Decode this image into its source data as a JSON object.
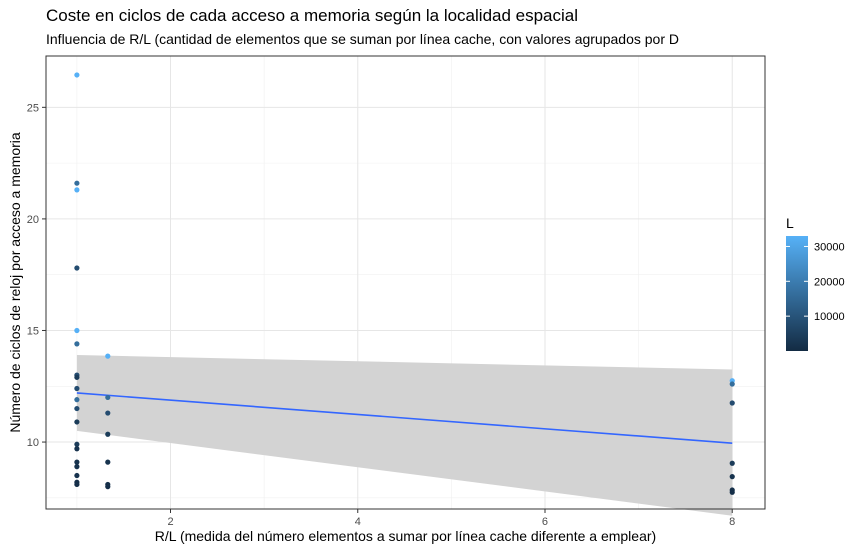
{
  "chart_data": {
    "type": "scatter",
    "title": "Coste en ciclos de cada acceso a memoria según la localidad espacial",
    "subtitle": "Influencia de R/L (cantidad de elementos que se suman por línea cache, con valores agrupados por D",
    "xlabel": "R/L (medida del número elementos a sumar por línea cache diferente a emplear)",
    "ylabel": "Número de ciclos de reloj por acceso a memoria",
    "xlim": [
      0.67,
      8.35
    ],
    "ylim": [
      7.0,
      27.3
    ],
    "x_ticks": [
      2,
      4,
      6,
      8
    ],
    "y_ticks": [
      10,
      15,
      20,
      25
    ],
    "x_tick_labels": [
      "2",
      "4",
      "6",
      "8"
    ],
    "y_tick_labels": [
      "10",
      "15",
      "20",
      "25"
    ],
    "grid": true,
    "legend": {
      "title": "L",
      "placement": "right",
      "min": 0,
      "max": 33000,
      "breaks": [
        10000,
        20000,
        30000
      ],
      "break_labels": [
        "10000",
        "20000",
        "30000"
      ],
      "color_low": "#132B43",
      "color_high": "#56B1F7"
    },
    "points": [
      {
        "x": 1,
        "y": 26.45,
        "L": 32768
      },
      {
        "x": 1,
        "y": 21.6,
        "L": 16384
      },
      {
        "x": 1,
        "y": 21.3,
        "L": 32768
      },
      {
        "x": 1,
        "y": 17.8,
        "L": 8192
      },
      {
        "x": 1,
        "y": 15.0,
        "L": 32768
      },
      {
        "x": 1,
        "y": 14.4,
        "L": 16384
      },
      {
        "x": 1,
        "y": 13.0,
        "L": 8192
      },
      {
        "x": 1,
        "y": 12.9,
        "L": 4096
      },
      {
        "x": 1,
        "y": 12.4,
        "L": 8192
      },
      {
        "x": 1,
        "y": 11.9,
        "L": 16384
      },
      {
        "x": 1,
        "y": 11.5,
        "L": 8192
      },
      {
        "x": 1,
        "y": 10.9,
        "L": 4096
      },
      {
        "x": 1,
        "y": 9.9,
        "L": 4096
      },
      {
        "x": 1,
        "y": 9.7,
        "L": 2048
      },
      {
        "x": 1,
        "y": 9.1,
        "L": 2048
      },
      {
        "x": 1,
        "y": 8.9,
        "L": 2048
      },
      {
        "x": 1,
        "y": 8.5,
        "L": 2048
      },
      {
        "x": 1,
        "y": 8.2,
        "L": 1024
      },
      {
        "x": 1,
        "y": 8.1,
        "L": 1024
      },
      {
        "x": 1.33,
        "y": 13.85,
        "L": 32768
      },
      {
        "x": 1.33,
        "y": 12.0,
        "L": 16384
      },
      {
        "x": 1.33,
        "y": 11.3,
        "L": 8192
      },
      {
        "x": 1.33,
        "y": 10.35,
        "L": 4096
      },
      {
        "x": 1.33,
        "y": 9.1,
        "L": 2048
      },
      {
        "x": 1.33,
        "y": 8.1,
        "L": 1024
      },
      {
        "x": 1.33,
        "y": 8.0,
        "L": 1024
      },
      {
        "x": 8,
        "y": 12.75,
        "L": 32768
      },
      {
        "x": 8,
        "y": 12.6,
        "L": 16384
      },
      {
        "x": 8,
        "y": 11.75,
        "L": 8192
      },
      {
        "x": 8,
        "y": 9.05,
        "L": 4096
      },
      {
        "x": 8,
        "y": 8.45,
        "L": 2048
      },
      {
        "x": 8,
        "y": 7.85,
        "L": 1024
      },
      {
        "x": 8,
        "y": 7.75,
        "L": 1024
      }
    ],
    "trend": {
      "x": [
        1,
        8
      ],
      "y": [
        12.2,
        9.95
      ],
      "ci_lower": [
        10.5,
        6.7
      ],
      "ci_upper": [
        13.9,
        13.25
      ],
      "line_color": "#3366FF",
      "ci_color": "#D3D3D3"
    }
  }
}
